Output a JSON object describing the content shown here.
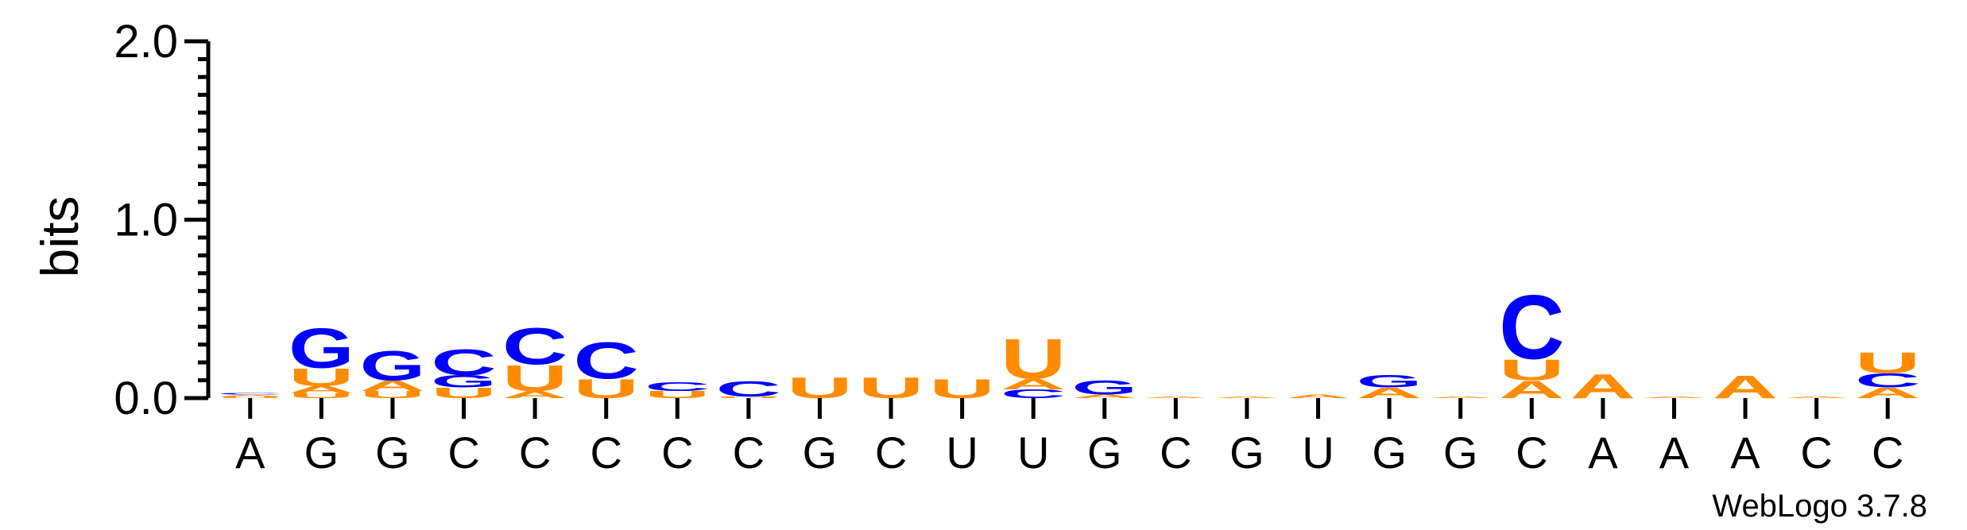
{
  "chart_data": {
    "type": "sequence-logo",
    "ylabel": "bits",
    "ylim": [
      0,
      2.0
    ],
    "y_ticks": [
      {
        "value": 2.0,
        "label": "2.0"
      },
      {
        "value": 1.0,
        "label": "1.0"
      },
      {
        "value": 0.0,
        "label": "0.0"
      }
    ],
    "y_minor_step": 0.1,
    "colors": {
      "A": "#ff8c00",
      "U": "#ff8c00",
      "C": "#0000ff",
      "G": "#0000ff"
    },
    "positions": [
      {
        "label": "A",
        "stack": [
          [
            "U",
            0.01
          ],
          [
            "A",
            0.01
          ],
          [
            "C",
            0.01
          ]
        ]
      },
      {
        "label": "G",
        "stack": [
          [
            "U",
            0.03
          ],
          [
            "A",
            0.04
          ],
          [
            "U",
            0.1
          ],
          [
            "G",
            0.23
          ]
        ]
      },
      {
        "label": "G",
        "stack": [
          [
            "U",
            0.04
          ],
          [
            "A",
            0.06
          ],
          [
            "G",
            0.17
          ]
        ]
      },
      {
        "label": "C",
        "stack": [
          [
            "U",
            0.06
          ],
          [
            "G",
            0.07
          ],
          [
            "C",
            0.15
          ]
        ]
      },
      {
        "label": "C",
        "stack": [
          [
            "A",
            0.04
          ],
          [
            "U",
            0.15
          ],
          [
            "C",
            0.21
          ]
        ]
      },
      {
        "label": "C",
        "stack": [
          [
            "U",
            0.11
          ],
          [
            "C",
            0.21
          ]
        ]
      },
      {
        "label": "C",
        "stack": [
          [
            "U",
            0.04
          ],
          [
            "C",
            0.05
          ]
        ]
      },
      {
        "label": "C",
        "stack": [
          [
            "U",
            0.01
          ],
          [
            "C",
            0.09
          ]
        ]
      },
      {
        "label": "G",
        "stack": [
          [
            "U",
            0.12
          ]
        ]
      },
      {
        "label": "C",
        "stack": [
          [
            "U",
            0.12
          ]
        ]
      },
      {
        "label": "U",
        "stack": [
          [
            "U",
            0.11
          ]
        ]
      },
      {
        "label": "U",
        "stack": [
          [
            "C",
            0.05
          ],
          [
            "A",
            0.06
          ],
          [
            "U",
            0.23
          ]
        ]
      },
      {
        "label": "G",
        "stack": [
          [
            "A",
            0.02
          ],
          [
            "G",
            0.08
          ]
        ]
      },
      {
        "label": "C",
        "stack": [
          [
            "A",
            0.01
          ]
        ]
      },
      {
        "label": "G",
        "stack": [
          [
            "A",
            0.01
          ]
        ]
      },
      {
        "label": "U",
        "stack": [
          [
            "A",
            0.02
          ]
        ]
      },
      {
        "label": "G",
        "stack": [
          [
            "A",
            0.06
          ],
          [
            "G",
            0.07
          ]
        ]
      },
      {
        "label": "G",
        "stack": [
          [
            "A",
            0.01
          ]
        ]
      },
      {
        "label": "C",
        "stack": [
          [
            "A",
            0.1
          ],
          [
            "U",
            0.12
          ],
          [
            "C",
            0.37
          ]
        ]
      },
      {
        "label": "A",
        "stack": [
          [
            "A",
            0.14
          ]
        ]
      },
      {
        "label": "A",
        "stack": [
          [
            "A",
            0.01
          ]
        ]
      },
      {
        "label": "A",
        "stack": [
          [
            "A",
            0.13
          ]
        ]
      },
      {
        "label": "C",
        "stack": [
          [
            "A",
            0.01
          ]
        ]
      },
      {
        "label": "C",
        "stack": [
          [
            "A",
            0.06
          ],
          [
            "C",
            0.08
          ],
          [
            "U",
            0.12
          ]
        ]
      }
    ]
  },
  "credit": "WebLogo 3.7.8"
}
